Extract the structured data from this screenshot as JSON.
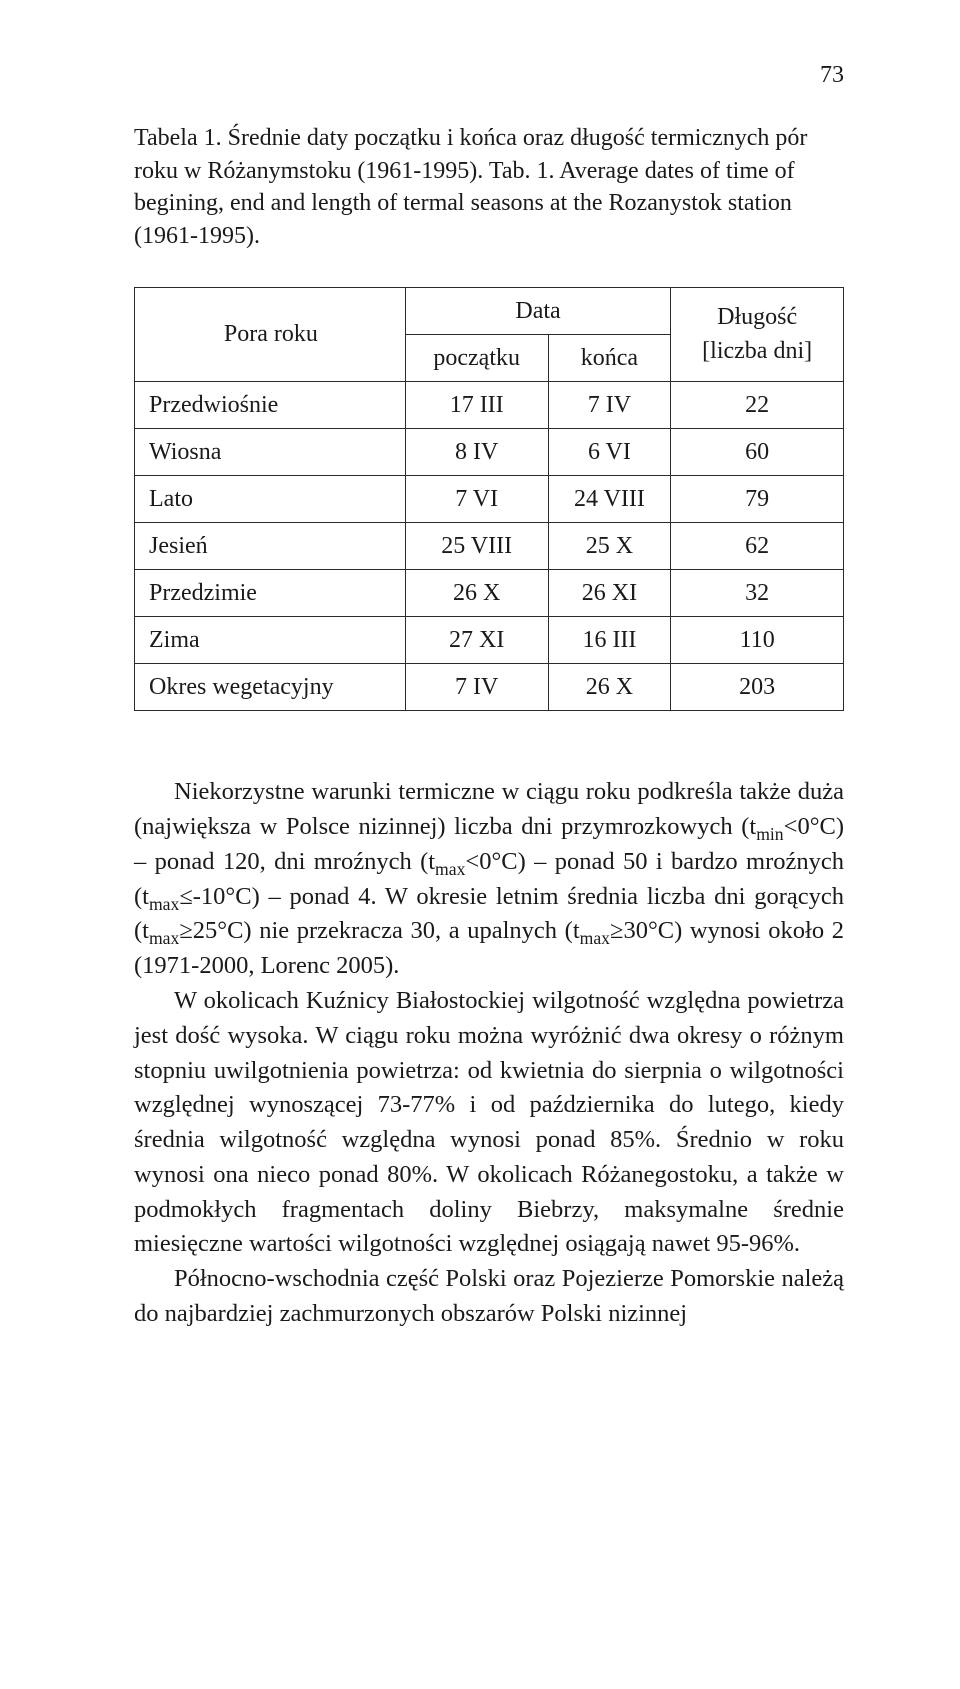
{
  "page_number": "73",
  "caption": {
    "line1": "Tabela 1. Średnie daty początku i końca oraz długość termicznych pór roku w Różanymstoku (1961-1995).",
    "line2": "Tab. 1. Average dates of time of begining, end and length of termal seasons at the Rozanystok station (1961-1995)."
  },
  "table": {
    "head": {
      "col1": "Pora roku",
      "data_group": "Data",
      "col2": "początku",
      "col3": "końca",
      "col4_l1": "Długość",
      "col4_l2": "[liczba dni]"
    },
    "rows": [
      {
        "label": "Przedwiośnie",
        "start": "17 III",
        "end": "7 IV",
        "len": "22"
      },
      {
        "label": "Wiosna",
        "start": "8 IV",
        "end": "6 VI",
        "len": "60"
      },
      {
        "label": "Lato",
        "start": "7 VI",
        "end": "24 VIII",
        "len": "79"
      },
      {
        "label": "Jesień",
        "start": "25 VIII",
        "end": "25 X",
        "len": "62"
      },
      {
        "label": "Przedzimie",
        "start": "26 X",
        "end": "26 XI",
        "len": "32"
      },
      {
        "label": "Zima",
        "start": "27 XI",
        "end": "16 III",
        "len": "110"
      },
      {
        "label": "Okres wegetacyjny",
        "start": "7 IV",
        "end": "26 X",
        "len": "203"
      }
    ]
  },
  "para1_html": "Niekorzystne warunki termiczne w ciągu roku podkreśla także duża (największa w Polsce nizinnej) liczba dni przymrozkowych (t<sub>min</sub>&lt;0°C) – ponad 120, dni mroźnych (t<sub>max</sub>&lt;0°C) – ponad 50 i bardzo mroźnych (t<sub>max</sub>≤-10°C) – ponad 4. W okresie letnim średnia liczba dni gorących (t<sub>max</sub>≥25°C) nie przekracza 30, a upalnych (t<sub>max</sub>≥30°C) wynosi około 2 (1971-2000, Lorenc 2005).",
  "para2_html": "W okolicach Kuźnicy Białostockiej wilgotność względna powietrza jest dość wysoka. W ciągu roku można wyróżnić dwa okresy o różnym stopniu uwilgotnienia powietrza: od kwietnia do sierpnia o wilgotności względnej wynoszącej 73-77% i od października do lutego, kiedy średnia wilgotność względna wynosi ponad 85%. Średnio w roku wynosi ona nieco ponad 80%. W okolicach Różanegostoku, a także w podmokłych fragmentach doliny Biebrzy, maksymalne średnie miesięczne wartości wilgotności względnej osiągają nawet 95-96%.",
  "para3_html": "Północno-wschodnia część Polski oraz Pojezierze Pomorskie należą do najbardziej zachmurzonych obszarów Polski nizinnej"
}
